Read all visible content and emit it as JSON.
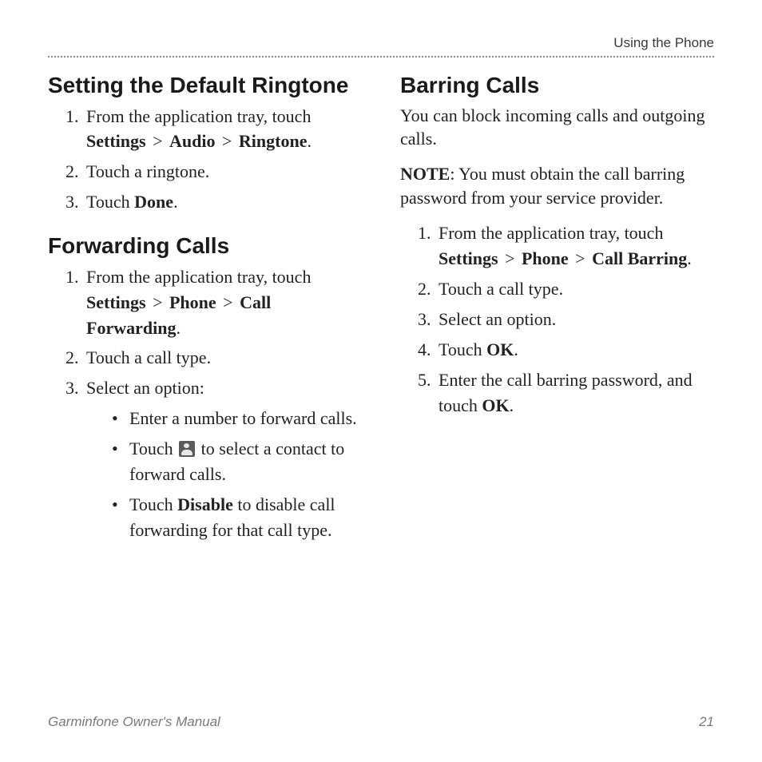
{
  "header": {
    "running_title": "Using the Phone"
  },
  "left": {
    "sec1": {
      "title": "Setting the Default Ringtone",
      "step1_pre": "From the application tray, touch ",
      "step1_b1": "Settings",
      "step1_gt1": " > ",
      "step1_b2": "Audio",
      "step1_gt2": " > ",
      "step1_b3": "Ringtone",
      "step1_post": ".",
      "step2": "Touch a ringtone.",
      "step3_pre": "Touch ",
      "step3_b": "Done",
      "step3_post": "."
    },
    "sec2": {
      "title": "Forwarding Calls",
      "step1_pre": "From the application tray, touch ",
      "step1_b1": "Settings",
      "step1_gt1": " > ",
      "step1_b2": "Phone",
      "step1_gt2": " > ",
      "step1_b3": "Call Forwarding",
      "step1_post": ".",
      "step2": "Touch a call type.",
      "step3": "Select an option:",
      "bullet1": "Enter a number to forward calls.",
      "bullet2_pre": "Touch ",
      "bullet2_icon_name": "contact-icon",
      "bullet2_post": " to select a contact to forward calls.",
      "bullet3_pre": "Touch ",
      "bullet3_b": "Disable",
      "bullet3_post": " to disable call forwarding for that call type."
    }
  },
  "right": {
    "sec1": {
      "title": "Barring Calls",
      "intro": "You can block incoming calls and outgoing calls.",
      "note_label": "NOTE",
      "note_text": ": You must obtain the call barring password from your service provider.",
      "step1_pre": "From the application tray, touch ",
      "step1_b1": "Settings",
      "step1_gt1": " > ",
      "step1_b2": "Phone",
      "step1_gt2": " > ",
      "step1_b3": "Call Barring",
      "step1_post": ".",
      "step2": "Touch a call type.",
      "step3": "Select an option.",
      "step4_pre": "Touch ",
      "step4_b": "OK",
      "step4_post": ".",
      "step5_pre": "Enter the call barring password, and touch ",
      "step5_b": "OK",
      "step5_post": "."
    }
  },
  "footer": {
    "manual_title": "Garminfone Owner's Manual",
    "page_number": "21"
  }
}
